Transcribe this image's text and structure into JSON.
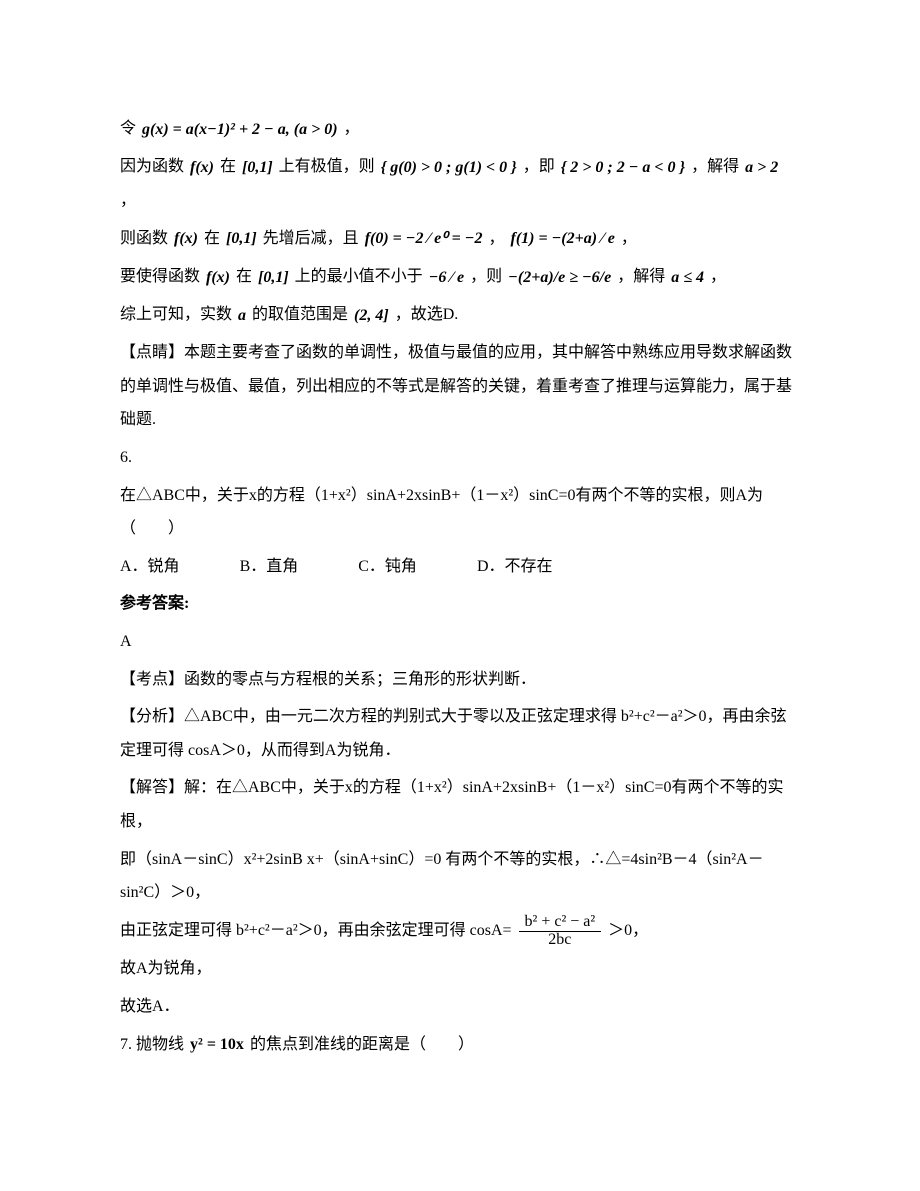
{
  "l1_a": "令",
  "l1_f": "g(x) = a(x−1)² + 2 − a,  (a > 0)",
  "l1_b": "，",
  "l2_a": "因为函数",
  "l2_f1": "f(x)",
  "l2_b": "在",
  "l2_f2": "[0,1]",
  "l2_c": "上有极值，则",
  "l2_f3": "{ g(0) > 0 ;  g(1) < 0 }",
  "l2_d": "，即",
  "l2_f4": "{ 2 > 0 ;  2 − a < 0 }",
  "l2_e": "，解得",
  "l2_f5": "a > 2",
  "l2_g": "，",
  "l3_a": "则函数",
  "l3_f1": "f(x)",
  "l3_b": "在",
  "l3_f2": "[0,1]",
  "l3_c": "先增后减，且",
  "l3_f3": "f(0) = −2 ⁄ e⁰ = −2",
  "l3_d": "，",
  "l3_f4": "f(1) = −(2+a) ⁄ e",
  "l3_e": "，",
  "l4_a": "要使得函数",
  "l4_f1": "f(x)",
  "l4_b": "在",
  "l4_f2": "[0,1]",
  "l4_c": "上的最小值不小于",
  "l4_f3": "−6 ⁄ e",
  "l4_d": "，则",
  "l4_f4": "−(2+a)/e ≥ −6/e",
  "l4_e": "，解得",
  "l4_f5": "a ≤ 4",
  "l4_g": "，",
  "l5_a": "综上可知，实数",
  "l5_f1": "a",
  "l5_b": "的取值范围是",
  "l5_f2": "(2, 4]",
  "l5_c": "，故选D.",
  "l6": "【点睛】本题主要考查了函数的单调性，极值与最值的应用，其中解答中熟练应用导数求解函数的单调性与极值、最值，列出相应的不等式是解答的关键，着重考查了推理与运算能力，属于基础题.",
  "q6_no": "6.",
  "q6_stem_a": "在△ABC中，关于x的方程（1+x²）sinA+2xsinB+（1－x²）sinC=0有两个不等的实根，则A为（　　）",
  "q6_optA": "A．锐角",
  "q6_optB": "B．直角",
  "q6_optC": "C．钝角",
  "q6_optD": "D．不存在",
  "ans_label": "参考答案:",
  "q6_ans": "A",
  "q6_kd": "【考点】函数的零点与方程根的关系；三角形的形状判断．",
  "q6_fx": "【分析】△ABC中，由一元二次方程的判别式大于零以及正弦定理求得 b²+c²－a²＞0，再由余弦定理可得 cosA＞0，从而得到A为锐角．",
  "q6_jd1": "【解答】解：在△ABC中，关于x的方程（1+x²）sinA+2xsinB+（1－x²）sinC=0有两个不等的实根，",
  "q6_jd2": "即（sinA－sinC）x²+2sinB x+（sinA+sinC）=0 有两个不等的实根，∴△=4sin²B－4（sin²A－sin²C）＞0，",
  "q6_jd3_a": "由正弦定理可得 b²+c²－a²＞0，再由余弦定理可得 cosA=",
  "q6_jd3_num": "b² + c² − a²",
  "q6_jd3_den": "2bc",
  "q6_jd3_b": "＞0，",
  "q6_jd4": "故A为锐角，",
  "q6_jd5": "故选A．",
  "q7_a": "7. 抛物线",
  "q7_f": "y² = 10x",
  "q7_b": "的焦点到准线的距离是（　　）"
}
